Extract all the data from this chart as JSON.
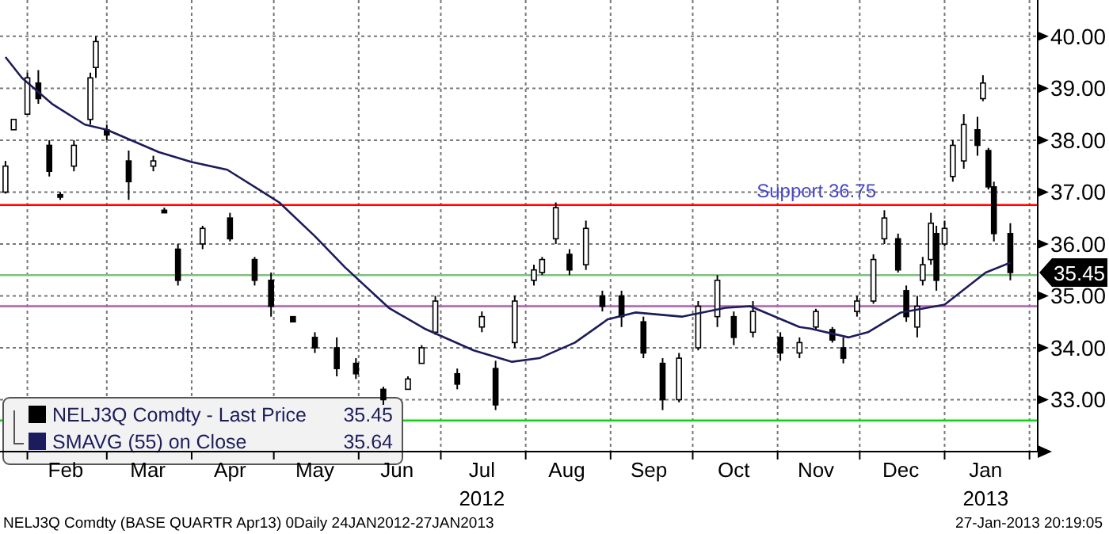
{
  "chart_data": {
    "type": "candlestick",
    "xlim": [
      "2012-01-22",
      "2013-02-04"
    ],
    "xticks": [
      {
        "value": "2012-02-01",
        "label": null
      },
      {
        "value": "2012-02-15",
        "label": "Feb"
      },
      {
        "value": "2012-03-01",
        "label": null
      },
      {
        "value": "2012-03-16",
        "label": "Mar"
      },
      {
        "value": "2012-04-01",
        "label": null
      },
      {
        "value": "2012-04-15",
        "label": "Apr"
      },
      {
        "value": "2012-05-01",
        "label": null
      },
      {
        "value": "2012-05-16",
        "label": "May"
      },
      {
        "value": "2012-06-01",
        "label": null
      },
      {
        "value": "2012-06-15",
        "label": "Jun"
      },
      {
        "value": "2012-07-01",
        "label": null
      },
      {
        "value": "2012-07-16",
        "label": "Jul\n2012"
      },
      {
        "value": "2012-08-01",
        "label": null
      },
      {
        "value": "2012-08-16",
        "label": "Aug"
      },
      {
        "value": "2012-09-01",
        "label": null
      },
      {
        "value": "2012-09-15",
        "label": "Sep"
      },
      {
        "value": "2012-10-01",
        "label": null
      },
      {
        "value": "2012-10-16",
        "label": "Oct"
      },
      {
        "value": "2012-11-01",
        "label": null
      },
      {
        "value": "2012-11-15",
        "label": "Nov"
      },
      {
        "value": "2012-12-01",
        "label": null
      },
      {
        "value": "2012-12-16",
        "label": "Dec"
      },
      {
        "value": "2013-01-01",
        "label": null
      },
      {
        "value": "2013-01-16",
        "label": "Jan\n2013"
      },
      {
        "value": "2013-02-01",
        "label": null
      }
    ],
    "ylim": [
      32,
      40.7
    ],
    "yticks": [
      {
        "value": 33,
        "label": "33.00"
      },
      {
        "value": 34,
        "label": "34.00"
      },
      {
        "value": 35,
        "label": "35.00"
      },
      {
        "value": 36,
        "label": "36.00"
      },
      {
        "value": 37,
        "label": "37.00"
      },
      {
        "value": 38,
        "label": "38.00"
      },
      {
        "value": 39,
        "label": "39.00"
      },
      {
        "value": 40,
        "label": "40.00"
      }
    ],
    "grid": true,
    "legend": "bottom left",
    "series": [
      {
        "name": "NELJ3Q Comdty - Last Price",
        "color": "#000000",
        "x": [
          "2012-01-24",
          "2012-01-27",
          "2012-02-01",
          "2012-02-05",
          "2012-02-09",
          "2012-02-13",
          "2012-02-18",
          "2012-02-24",
          "2012-02-26",
          "2012-03-01",
          "2012-03-09",
          "2012-03-18",
          "2012-03-22",
          "2012-03-27",
          "2012-04-05",
          "2012-04-15",
          "2012-04-24",
          "2012-04-30",
          "2012-05-08",
          "2012-05-16",
          "2012-05-24",
          "2012-05-31",
          "2012-06-10",
          "2012-06-19",
          "2012-06-24",
          "2012-06-29",
          "2012-07-07",
          "2012-07-16",
          "2012-07-21",
          "2012-07-28",
          "2012-08-04",
          "2012-08-07",
          "2012-08-12",
          "2012-08-17",
          "2012-08-23",
          "2012-08-29",
          "2012-09-05",
          "2012-09-13",
          "2012-09-20",
          "2012-09-26",
          "2012-10-03",
          "2012-10-10",
          "2012-10-16",
          "2012-10-23",
          "2012-11-02",
          "2012-11-09",
          "2012-11-15",
          "2012-11-21",
          "2012-11-25",
          "2012-11-30",
          "2012-12-06",
          "2012-12-10",
          "2012-12-15",
          "2012-12-18",
          "2012-12-22",
          "2012-12-24",
          "2012-12-27",
          "2012-12-29",
          "2013-01-01",
          "2013-01-04",
          "2013-01-08",
          "2013-01-13",
          "2013-01-15",
          "2013-01-17",
          "2013-01-19",
          "2013-01-25"
        ],
        "ohlc": [
          [
            37.0,
            37.6,
            36.97,
            37.5
          ],
          [
            38.2,
            38.4,
            38.2,
            38.4
          ],
          [
            38.5,
            39.3,
            38.5,
            39.2
          ],
          [
            39.1,
            39.35,
            38.7,
            38.8
          ],
          [
            37.9,
            38.0,
            37.3,
            37.4
          ],
          [
            36.95,
            37.0,
            36.85,
            36.9
          ],
          [
            37.5,
            38.0,
            37.4,
            37.9
          ],
          [
            38.4,
            39.3,
            38.3,
            39.2
          ],
          [
            39.4,
            40.0,
            39.2,
            39.9
          ],
          [
            38.2,
            38.3,
            38.0,
            38.1
          ],
          [
            37.6,
            37.8,
            36.85,
            37.2
          ],
          [
            37.5,
            37.7,
            37.4,
            37.6
          ],
          [
            36.65,
            36.7,
            36.6,
            36.6
          ],
          [
            35.9,
            36.0,
            35.2,
            35.3
          ],
          [
            36.0,
            36.35,
            35.9,
            36.3
          ],
          [
            36.5,
            36.6,
            36.05,
            36.1
          ],
          [
            35.7,
            35.75,
            35.2,
            35.3
          ],
          [
            35.3,
            35.45,
            34.6,
            34.8
          ],
          [
            34.6,
            34.6,
            34.5,
            34.5
          ],
          [
            34.2,
            34.3,
            33.9,
            34.0
          ],
          [
            34.0,
            34.2,
            33.45,
            33.6
          ],
          [
            33.7,
            33.8,
            33.4,
            33.5
          ],
          [
            33.2,
            33.25,
            32.9,
            33.0
          ],
          [
            33.2,
            33.45,
            33.2,
            33.4
          ],
          [
            33.7,
            34.05,
            33.7,
            34.0
          ],
          [
            34.3,
            35.0,
            34.25,
            34.9
          ],
          [
            33.5,
            33.6,
            33.2,
            33.3
          ],
          [
            34.4,
            34.7,
            34.3,
            34.6
          ],
          [
            33.6,
            33.75,
            32.8,
            32.9
          ],
          [
            34.1,
            35.0,
            34.0,
            34.9
          ],
          [
            35.3,
            35.6,
            35.2,
            35.5
          ],
          [
            35.45,
            35.75,
            35.4,
            35.7
          ],
          [
            36.1,
            36.8,
            36.0,
            36.7
          ],
          [
            35.8,
            35.9,
            35.4,
            35.5
          ],
          [
            35.6,
            36.45,
            35.5,
            36.3
          ],
          [
            35.0,
            35.1,
            34.7,
            34.8
          ],
          [
            35.0,
            35.1,
            34.4,
            34.6
          ],
          [
            34.5,
            34.6,
            33.8,
            33.9
          ],
          [
            33.7,
            33.8,
            32.8,
            33.0
          ],
          [
            33.0,
            33.9,
            32.95,
            33.8
          ],
          [
            34.0,
            34.9,
            33.95,
            34.8
          ],
          [
            34.6,
            35.4,
            34.4,
            35.3
          ],
          [
            34.6,
            34.7,
            34.05,
            34.2
          ],
          [
            34.3,
            34.9,
            34.2,
            34.7
          ],
          [
            34.2,
            34.3,
            33.75,
            33.9
          ],
          [
            33.9,
            34.2,
            33.8,
            34.1
          ],
          [
            34.4,
            34.75,
            34.35,
            34.7
          ],
          [
            34.35,
            34.4,
            34.1,
            34.15
          ],
          [
            34.0,
            34.2,
            33.7,
            33.8
          ],
          [
            34.7,
            35.0,
            34.6,
            34.9
          ],
          [
            34.9,
            35.8,
            34.85,
            35.7
          ],
          [
            36.1,
            36.65,
            36.0,
            36.5
          ],
          [
            36.1,
            36.2,
            35.45,
            35.5
          ],
          [
            35.1,
            35.2,
            34.5,
            34.6
          ],
          [
            34.4,
            35.0,
            34.2,
            34.8
          ],
          [
            35.3,
            35.75,
            35.2,
            35.6
          ],
          [
            35.7,
            36.6,
            35.6,
            36.4
          ],
          [
            36.2,
            36.35,
            35.1,
            35.3
          ],
          [
            36.0,
            36.45,
            35.95,
            36.3
          ],
          [
            37.3,
            38.0,
            37.2,
            37.9
          ],
          [
            37.6,
            38.5,
            37.45,
            38.3
          ],
          [
            38.2,
            38.45,
            37.7,
            37.9
          ],
          [
            38.8,
            39.25,
            38.75,
            39.1
          ],
          [
            37.8,
            37.85,
            37.05,
            37.1
          ],
          [
            37.1,
            37.2,
            36.05,
            36.2
          ],
          [
            36.2,
            36.4,
            35.3,
            35.45
          ]
        ]
      },
      {
        "type": "line",
        "name": "SMAVG (55) on Close",
        "color": "#1c1c5c",
        "x": [
          "2012-01-24",
          "2012-01-30",
          "2012-02-10",
          "2012-02-22",
          "2012-03-01",
          "2012-03-20",
          "2012-04-01",
          "2012-04-14",
          "2012-04-27",
          "2012-05-03",
          "2012-05-16",
          "2012-05-27",
          "2012-06-12",
          "2012-06-25",
          "2012-07-13",
          "2012-07-27",
          "2012-08-06",
          "2012-08-19",
          "2012-08-31",
          "2012-09-10",
          "2012-09-27",
          "2012-10-13",
          "2012-10-22",
          "2012-11-09",
          "2012-11-13",
          "2012-11-27",
          "2012-12-04",
          "2012-12-16",
          "2013-01-01",
          "2013-01-16",
          "2013-01-25"
        ],
        "values": [
          39.6,
          39.2,
          38.7,
          38.3,
          38.2,
          37.77,
          37.58,
          37.43,
          37.0,
          36.8,
          36.15,
          35.55,
          34.77,
          34.37,
          33.95,
          33.73,
          33.8,
          34.1,
          34.55,
          34.68,
          34.6,
          34.77,
          34.8,
          34.4,
          34.37,
          34.2,
          34.3,
          34.68,
          34.83,
          35.45,
          35.64
        ]
      }
    ],
    "ref_lines": [
      {
        "axis": "y",
        "value": 36.75,
        "label": "Support 36.75",
        "color": "#ff0000"
      },
      {
        "axis": "y",
        "value": 35.4,
        "color": "#80c080"
      },
      {
        "axis": "y",
        "value": 34.8,
        "color": "#b060b0"
      },
      {
        "axis": "y",
        "value": 32.6,
        "color": "#00dd00"
      }
    ],
    "annotations": [
      "NELJ3Q Comdty (BASE QUARTR Apr13) 0Daily 24JAN2012-27JAN2013",
      "27-Jan-2013 20:19:05",
      "35.45",
      "35.64",
      "35.45"
    ]
  }
}
